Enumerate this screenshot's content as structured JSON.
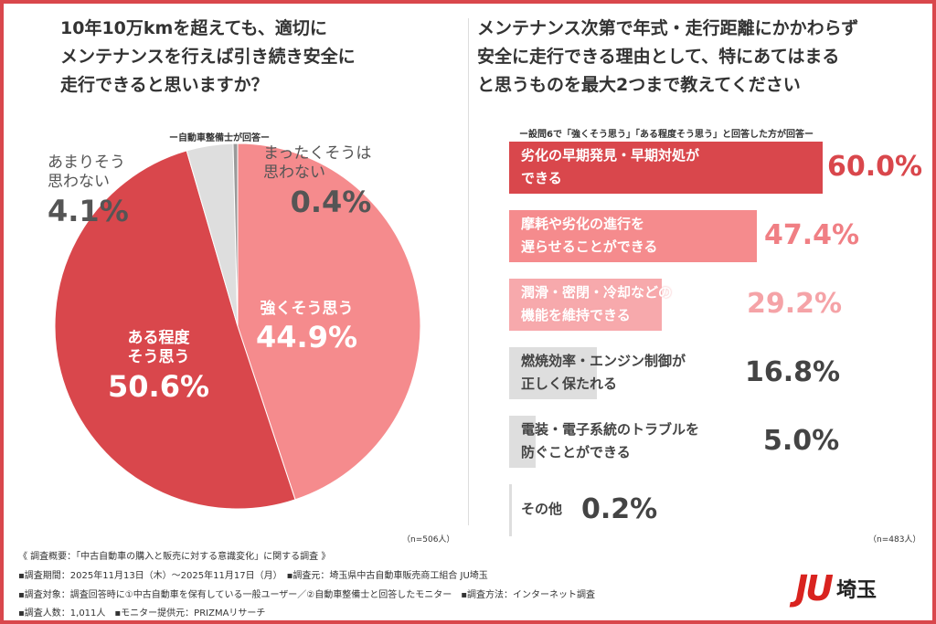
{
  "left": {
    "question": [
      "10年10万kmを超えても、適切に",
      "メンテナンスを行えば引き続き安全に",
      "走行できると思いますか？"
    ],
    "subtitle": "ー自動車整備士が回答ー",
    "n": "（n=506人）"
  },
  "right": {
    "question": [
      "メンテナンス次第で年式・走行距離にかかわらず",
      "安全に走行できる理由として、特にあてはまる",
      "と思うものを最大2つまで教えてください"
    ],
    "subtitle": "ー設問6で「強くそう思う」「ある程度そう思う」と回答した方が回答ー",
    "n": "（n=483人）"
  },
  "chart_data": [
    {
      "type": "pie",
      "start": "top",
      "direction": "clockwise",
      "slices": [
        {
          "label": "強くそう思う",
          "value": 44.9,
          "display": "44.9%",
          "color": "#f58b8d"
        },
        {
          "label": "ある程度そう思う",
          "value": 50.6,
          "display": "50.6%",
          "color": "#d9474c"
        },
        {
          "label": "あまりそう思わない",
          "value": 4.1,
          "display": "4.1%",
          "color": "#dedede"
        },
        {
          "label": "まったくそうは思わない",
          "value": 0.4,
          "display": "0.4%",
          "color": "#9a9a9a"
        }
      ]
    },
    {
      "type": "bar",
      "orientation": "horizontal",
      "unit": "%",
      "bars": [
        {
          "label": [
            "劣化の早期発見・早期対処が",
            "できる"
          ],
          "value": 60.0,
          "display": "60.0%",
          "color": "#d9474c",
          "text_color": "#d9474c"
        },
        {
          "label": [
            "摩耗や劣化の進行を",
            "遅らせることができる"
          ],
          "value": 47.4,
          "display": "47.4%",
          "color": "#f58b8d",
          "text_color": "#f07f84"
        },
        {
          "label": [
            "潤滑・密閉・冷却などの",
            "機能を維持できる"
          ],
          "value": 29.2,
          "display": "29.2%",
          "color": "#f7a9ac",
          "text_color": "#f5a3a7"
        },
        {
          "label": [
            "燃焼効率・エンジン制御が",
            "正しく保たれる"
          ],
          "value": 16.8,
          "display": "16.8%",
          "color": "#dedede",
          "text_color": "#444444"
        },
        {
          "label": [
            "電装・電子系統のトラブルを",
            "防ぐことができる"
          ],
          "value": 5.0,
          "display": "5.0%",
          "color": "#dedede",
          "text_color": "#444444"
        },
        {
          "label": [
            "その他"
          ],
          "value": 0.2,
          "display": "0.2%",
          "color": "#dedede",
          "text_color": "#444444"
        }
      ]
    }
  ],
  "footer": {
    "title": "《 調査概要：「中古自動車の購入と販売に対する意識変化」に関する調査 》",
    "line1": "▪調査期間：2025年11月13日（木）～2025年11月17日（月）　▪調査元：埼玉県中古自動車販売商工組合 JU埼玉",
    "line2": "▪調査対象：調査回答時に①中古自動車を保有している一般ユーザー／②自動車整備士と回答したモニター　▪調査方法：インターネット調査",
    "line3": "▪調査人数：1,011人　▪モニター提供元：PRIZMAリサーチ"
  },
  "logo": {
    "mark": "JU",
    "text": "埼玉",
    "color": "#d9231f"
  }
}
